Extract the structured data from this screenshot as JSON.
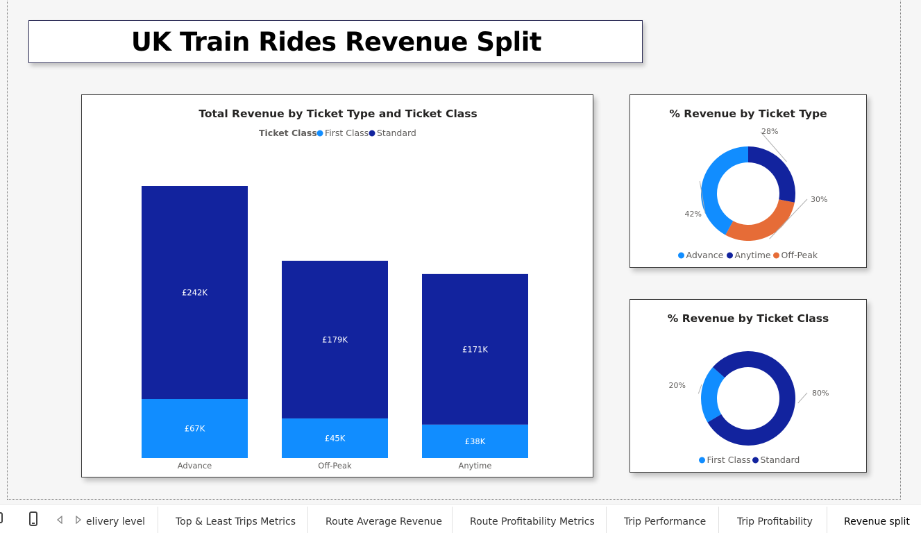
{
  "report": {
    "title": "UK Train Rides Revenue Split"
  },
  "colors": {
    "first_class": "#118dff",
    "standard": "#12239e",
    "off_peak": "#e66c37",
    "advance": "#118dff",
    "anytime": "#12239e"
  },
  "bar_chart": {
    "title": "Total Revenue by Ticket Type and Ticket Class",
    "legend_title": "Ticket Class",
    "legend_items": [
      "First Class",
      "Standard"
    ]
  },
  "donut_type": {
    "title": "% Revenue by Ticket Type",
    "legend_items": [
      "Advance",
      "Anytime",
      "Off-Peak"
    ]
  },
  "donut_class": {
    "title": "% Revenue by Ticket Class",
    "legend_items": [
      "First Class",
      "Standard"
    ]
  },
  "chart_data": [
    {
      "type": "bar",
      "stacked": true,
      "title": "Total Revenue by Ticket Type and Ticket Class",
      "categories": [
        "Advance",
        "Off-Peak",
        "Anytime"
      ],
      "series": [
        {
          "name": "First Class",
          "values": [
            67,
            45,
            38
          ],
          "labels": [
            "£67K",
            "£45K",
            "£38K"
          ],
          "color": "#118dff"
        },
        {
          "name": "Standard",
          "values": [
            242,
            179,
            171
          ],
          "labels": [
            "£242K",
            "£179K",
            "£171K"
          ],
          "color": "#12239e"
        }
      ],
      "unit": "£K",
      "legend_title": "Ticket Class",
      "legend_position": "top-center",
      "grid": false
    },
    {
      "type": "pie",
      "donut": true,
      "title": "% Revenue by Ticket Type",
      "slices": [
        {
          "name": "Advance",
          "value": 42,
          "label": "42%",
          "color": "#118dff"
        },
        {
          "name": "Anytime",
          "value": 28,
          "label": "28%",
          "color": "#12239e"
        },
        {
          "name": "Off-Peak",
          "value": 30,
          "label": "30%",
          "color": "#e66c37"
        }
      ],
      "legend_position": "bottom-center"
    },
    {
      "type": "pie",
      "donut": true,
      "title": "% Revenue by Ticket Class",
      "slices": [
        {
          "name": "First Class",
          "value": 20,
          "label": "20%",
          "color": "#118dff"
        },
        {
          "name": "Standard",
          "value": 80,
          "label": "80%",
          "color": "#12239e"
        }
      ],
      "legend_position": "bottom-center"
    }
  ],
  "tabs": [
    {
      "label": "elivery level",
      "active": false
    },
    {
      "label": "Top & Least Trips Metrics",
      "active": false
    },
    {
      "label": "Route Average Revenue",
      "active": false
    },
    {
      "label": "Route Profitability Metrics",
      "active": false
    },
    {
      "label": "Trip Performance",
      "active": false
    },
    {
      "label": "Trip Profitability",
      "active": false
    },
    {
      "label": "Revenue split",
      "active": true
    }
  ],
  "icons": {
    "mobile": "mobile-layout-icon",
    "prev": "previous-page-icon",
    "next": "next-page-icon"
  }
}
